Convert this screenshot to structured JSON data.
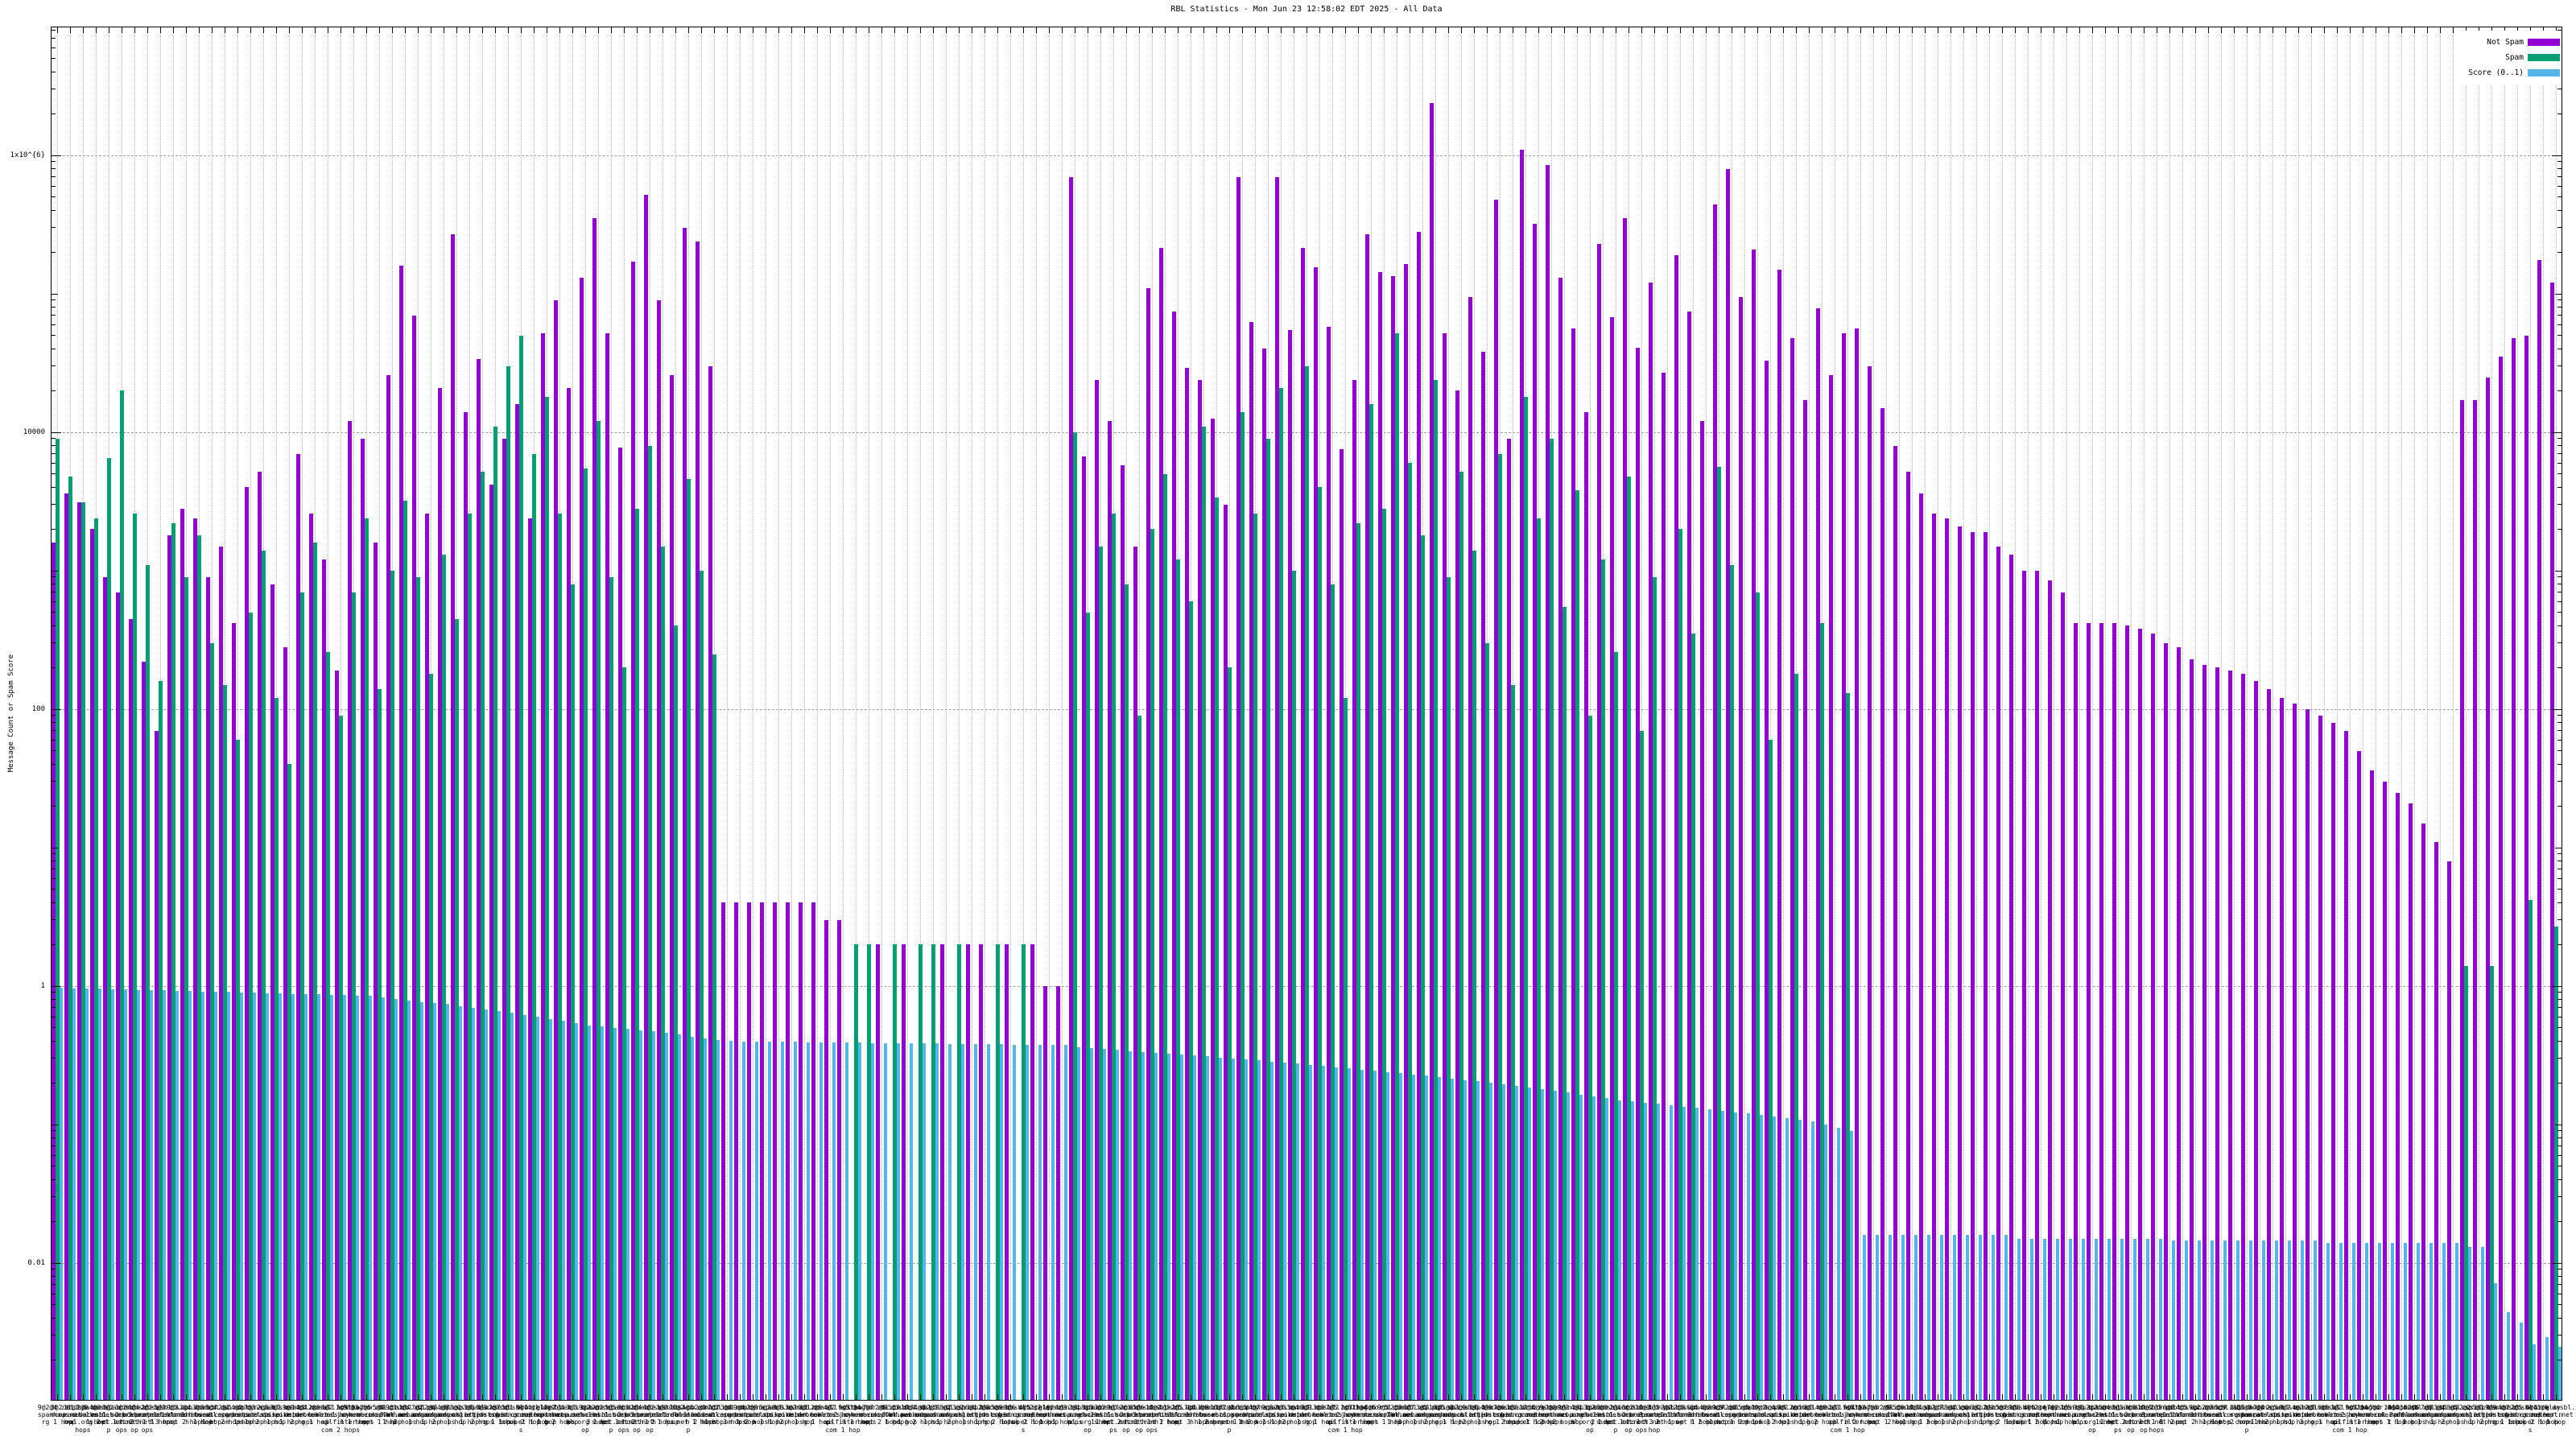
{
  "title": "RBL Statistics - Mon Jun 23 12:58:02 EDT 2025 - All Data",
  "y_axis": {
    "label": "Message Count or Spam Score",
    "tick_labels": [
      "1x10^{6}",
      "10000",
      "100",
      "1",
      "0.01"
    ]
  },
  "legend": [
    {
      "label": "Not Spam",
      "color": "#9400d3"
    },
    {
      "label": "Spam",
      "color": "#009e73"
    },
    {
      "label": "Score (0..1)",
      "color": "#56b4e9"
    }
  ],
  "chart_data": {
    "type": "bar",
    "title": "RBL Statistics - Mon Jun 23 12:58:02 EDT 2025 - All Data",
    "xlabel": "",
    "ylabel": "Message Count or Spam Score",
    "y_scale": "log10",
    "ylim": [
      0.001,
      8500000
    ],
    "grid": true,
    "legend_position": "top-right-inside",
    "y_gridlines": [
      1000000,
      10000,
      100,
      1,
      0.01
    ],
    "series": [
      {
        "name": "Not Spam",
        "color": "#9400d3",
        "values": [
          1600,
          3600,
          3100,
          2000,
          900,
          700,
          450,
          220,
          70,
          1800,
          2800,
          2400,
          900,
          1500,
          420,
          4000,
          5200,
          800,
          280,
          7000,
          2600,
          1200,
          190,
          12000,
          9000,
          1600,
          26000,
          160000,
          70000,
          2600,
          21000,
          270000,
          14000,
          34000,
          4200,
          9000,
          16000,
          2400,
          52000,
          90000,
          21000,
          130000,
          350000,
          52000,
          7800,
          170000,
          520000,
          90000,
          26000,
          300000,
          240000,
          30000,
          4,
          4,
          4,
          4,
          4,
          4,
          4,
          4,
          3,
          3,
          0,
          0,
          2,
          0,
          2,
          0,
          0,
          2,
          0,
          2,
          2,
          0,
          2,
          0,
          2,
          1,
          1,
          700000,
          6700,
          24000,
          12000,
          5800,
          1500,
          110000,
          215000,
          74000,
          29000,
          24000,
          12500,
          3000,
          700000,
          63000,
          40000,
          700000,
          55000,
          215000,
          155000,
          58000,
          7500,
          24000,
          270000,
          143000,
          135000,
          165000,
          280000,
          2400000,
          52000,
          20000,
          95000,
          38000,
          480000,
          9000,
          1100000,
          320000,
          850000,
          130000,
          56000,
          14000,
          230000,
          68000,
          350000,
          41000,
          120000,
          27000,
          190000,
          74000,
          12000,
          440000,
          800000,
          95000,
          210000,
          33000,
          150000,
          48000,
          17000,
          79000,
          26000,
          52000,
          56000,
          30000,
          15000,
          8000,
          5200,
          3600,
          2600,
          2400,
          2100,
          1900,
          1900,
          1500,
          1300,
          1000,
          1000,
          850,
          700,
          420,
          420,
          420,
          420,
          400,
          380,
          350,
          300,
          280,
          230,
          210,
          200,
          190,
          180,
          160,
          140,
          120,
          110,
          100,
          90,
          80,
          70,
          50,
          36,
          30,
          25,
          21,
          15,
          11,
          8,
          17000,
          17000,
          25000,
          35000,
          48000,
          50000,
          175000,
          120000
        ]
      },
      {
        "name": "Spam",
        "color": "#009e73",
        "values": [
          9000,
          4800,
          3100,
          2400,
          6500,
          20000,
          2600,
          1100,
          160,
          2200,
          900,
          1800,
          300,
          150,
          60,
          500,
          1400,
          120,
          40,
          700,
          1600,
          260,
          90,
          700,
          2400,
          140,
          1000,
          3200,
          900,
          180,
          1300,
          450,
          2600,
          5200,
          11000,
          30000,
          50000,
          7000,
          18000,
          2600,
          800,
          5500,
          12000,
          900,
          200,
          2800,
          8000,
          1500,
          400,
          4600,
          1000,
          250,
          0,
          0,
          0,
          0,
          0,
          0,
          0,
          0,
          0,
          0,
          2,
          2,
          0,
          2,
          0,
          2,
          2,
          0,
          2,
          0,
          0,
          2,
          0,
          2,
          0,
          0,
          0,
          10000,
          500,
          1500,
          2600,
          800,
          90,
          2000,
          5000,
          1200,
          600,
          11000,
          3400,
          200,
          14000,
          2600,
          9000,
          21000,
          1000,
          30000,
          4000,
          800,
          120,
          2200,
          16000,
          2800,
          52000,
          6000,
          1800,
          24000,
          900,
          5200,
          1400,
          300,
          7000,
          150,
          18000,
          2400,
          9000,
          550,
          3800,
          90,
          1200,
          260,
          4800,
          70,
          900,
          0,
          2000,
          350,
          0,
          5600,
          1100,
          0,
          700,
          60,
          0,
          180,
          0,
          420,
          0,
          130,
          0,
          0,
          0,
          0,
          0,
          0,
          0,
          0,
          0,
          0,
          0,
          0,
          0,
          0,
          0,
          0,
          0,
          0,
          0,
          0,
          0,
          0,
          0,
          0,
          0,
          0,
          0,
          0,
          0,
          0,
          0,
          0,
          0,
          0,
          0,
          0,
          0,
          0,
          0,
          0,
          0,
          0,
          0,
          0,
          0,
          0,
          0,
          1.4,
          0,
          1.4,
          0,
          0,
          4.2,
          0,
          2.7
        ]
      },
      {
        "name": "Score (0..1)",
        "color": "#56b4e9",
        "values": [
          0.97,
          0.965,
          0.96,
          0.955,
          0.95,
          0.945,
          0.94,
          0.935,
          0.93,
          0.925,
          0.92,
          0.915,
          0.91,
          0.905,
          0.9,
          0.895,
          0.89,
          0.885,
          0.88,
          0.875,
          0.87,
          0.865,
          0.86,
          0.855,
          0.85,
          0.83,
          0.81,
          0.79,
          0.77,
          0.76,
          0.74,
          0.72,
          0.7,
          0.68,
          0.66,
          0.64,
          0.62,
          0.6,
          0.58,
          0.56,
          0.54,
          0.52,
          0.51,
          0.5,
          0.49,
          0.48,
          0.47,
          0.46,
          0.45,
          0.43,
          0.42,
          0.41,
          0.4,
          0.399,
          0.398,
          0.397,
          0.396,
          0.395,
          0.394,
          0.393,
          0.392,
          0.391,
          0.39,
          0.389,
          0.388,
          0.387,
          0.386,
          0.385,
          0.384,
          0.383,
          0.382,
          0.381,
          0.38,
          0.379,
          0.378,
          0.377,
          0.376,
          0.375,
          0.374,
          0.36,
          0.355,
          0.35,
          0.345,
          0.34,
          0.335,
          0.33,
          0.325,
          0.32,
          0.315,
          0.31,
          0.305,
          0.3,
          0.295,
          0.29,
          0.285,
          0.28,
          0.275,
          0.27,
          0.265,
          0.26,
          0.255,
          0.25,
          0.245,
          0.24,
          0.235,
          0.23,
          0.225,
          0.22,
          0.215,
          0.21,
          0.205,
          0.2,
          0.195,
          0.19,
          0.185,
          0.18,
          0.175,
          0.17,
          0.165,
          0.16,
          0.155,
          0.15,
          0.147,
          0.144,
          0.141,
          0.138,
          0.135,
          0.132,
          0.129,
          0.126,
          0.123,
          0.12,
          0.117,
          0.114,
          0.111,
          0.108,
          0.105,
          0.1,
          0.095,
          0.09,
          0.016,
          0.016,
          0.016,
          0.016,
          0.016,
          0.016,
          0.016,
          0.016,
          0.016,
          0.016,
          0.016,
          0.016,
          0.015,
          0.015,
          0.015,
          0.015,
          0.015,
          0.015,
          0.015,
          0.015,
          0.015,
          0.015,
          0.015,
          0.015,
          0.0145,
          0.0145,
          0.0145,
          0.0145,
          0.0145,
          0.0145,
          0.0145,
          0.0145,
          0.0145,
          0.0145,
          0.0145,
          0.0145,
          0.014,
          0.014,
          0.014,
          0.014,
          0.014,
          0.014,
          0.014,
          0.014,
          0.014,
          0.014,
          0.014,
          0.013,
          0.013,
          0.0072,
          0.0044,
          0.0037,
          0.0026,
          0.0029,
          0.0025
        ]
      }
    ],
    "categories": [
      "9@2@4 zen.spamhaus.org 1 hop",
      "3@2 bl.spamcop.net 1 hop",
      "11@8 b.barracudacentral.org 2 hops",
      "2@9 dnsbl.sorbs.net 1 hop",
      "4@3 spam.dnsbl.sorbs.net 1 hop",
      "8@2 dnsbl-1.uceprotect.net 2 hops",
      "1@2 dnsbl-2.uceprotect.net 1 hop",
      "6@4 dnsbl-3.uceprotect.net 3 hops",
      "2@2 psbl.surriel.com 1 hop",
      "5@3 db.wpbl.info 1 hop",
      "9@3 ix.dnsbl.manitu.net 2 hops",
      "2@4 combined.abuse.ch 1 hop",
      "3@3 cbl.abuseat.org 1 hop",
      "8@4 dul.dnsbl.sorbs.net 2 hops",
      "2@1 noptr.spamrats.com 1 hop",
      "4@2 dyna.spamrats.com 1 hop",
      "7@3 spam.spamrats.com 2 hops",
      "2@8 bl.mailspike.net 1 hop",
      "3@1 z.mailspike.net 1 hop",
      "9@9 bl.nordspam.com 2 hops",
      "4@4 dnsbl.dronebl.org 1 hop",
      "2@3 all.s5h.net 1 hop",
      "6@2 hostkarma.junkemailfilter.com 2 hops",
      "3@9 bogons.cymru.com 1 hop",
      "8@3 tor.dan.me.uk 3 hops",
      "2@5 rbl.interserver.net 1 hop",
      "5@4 dnsbl.spfbl.net 1 hop",
      "9@1 dbl.spamhaus.org 2 hops",
      "3@4 xbl.spamhaus.org 1 hop",
      "7@2 pbl.spamhaus.org 1 hop",
      "2@6 sbl.spamhaus.org 2 hops",
      "4@9 css.spamhaus.org 1 hop",
      "8@1 bl.blocklist.de 1 hop",
      "3@6 backscatter.org 2 hops",
      "6@3 dnsbl.justspam.org 1 hop",
      "2@7 dnsbl.cobion.com 1 hop",
      "5@1 orbz.gst-group.co.uk 2 hops",
      "9@4 relays.nether.net 1 hop",
      "4@1 dnsbl.kempt.net 1 hop",
      "12@2 zen.spamhaus.org 2 hops",
      "7@4 bl.spamcop.net 1 hop",
      "3@3 b.barracudacentral.org 1 hop",
      "9@2 dnsbl.sorbs.net 3 hops",
      "2@2 spam.dnsbl.sorbs.net 1 hop",
      "5@5 dnsbl-1.uceprotect.net 2 hops",
      "8@3 dnsbl-2.uceprotect.net 1 hop",
      "2@4 dnsbl-3.uceprotect.net 1 hop",
      "6@2 psbl.surriel.com 2 hops",
      "3@8 db.wpbl.info 1 hop",
      "10@2 ix.dnsbl.manitu.net 1 hop",
      "4@4 combined.abuse.ch 2 hops",
      "2@3 cbl.abuseat.org 1 hop",
      "7@2 dul.dnsbl.sorbs.net 3 hops",
      "3@5 noptr.spamrats.com 1 hop",
      "9@4 dyna.spamrats.com 2 hops",
      "2@9 spam.spamrats.com 1 hop",
      "5@2 bl.mailspike.net 1 hop",
      "8@8 z.mailspike.net 2 hops",
      "3@2 bl.nordspam.com 1 hop",
      "6@6 dnsbl.dronebl.org 1 hop",
      "2@5 all.s5h.net 2 hops",
      "4@2 hostkarma.junkemailfilter.com 1 hop",
      "9@3 bogons.cymru.com 1 hop",
      "3@4 tor.dan.me.uk 3 hops",
      "7@7 rbl.interserver.net 2 hops",
      "2@6 dnsbl.spfbl.net 1 hop",
      "5@3 dbl.spamhaus.org 1 hop",
      "10@4 xbl.spamhaus.org 2 hops",
      "4@8 pbl.spamhaus.org 1 hop",
      "2@1 sbl.spamhaus.org 1 hop",
      "8@2 css.spamhaus.org 2 hops",
      "3@7 bl.blocklist.de 1 hop",
      "6@4 backscatter.org 1 hop",
      "2@8 dnsbl.justspam.org 2 hops",
      "5@9 dnsbl.cobion.com 1 hop",
      "9@6 orbz.gst-group.co.uk 2 hops",
      "4@5 relays.nether.net 1 hop",
      "2@2 dnsbl.kempt.net 1 hop",
      "1@2 zen.spamhaus.org 1 hop",
      "6@3 bl.spamcop.net 2 hops",
      "2@4 b.barracudacentral.org 1 hop",
      "8@5 dnsbl.sorbs.net 1 hop",
      "3@2 spam.dnsbl.sorbs.net 2 hops",
      "9@7 dnsbl-1.uceprotect.net 1 hop",
      "2@3 dnsbl-2.uceprotect.net 1 hop",
      "5@6 dnsbl-3.uceprotect.net 2 hops",
      "11@2 psbl.surriel.com 1 hop",
      "4@3 db.wpbl.info 1 hop",
      "2@5 ix.dnsbl.manitu.net 3 hops",
      "7@8 combined.abuse.ch 1 hop",
      "3@9 cbl.abuseat.org 2 hops",
      "10@3 dul.dnsbl.sorbs.net 1 hop",
      "2@2 noptr.spamrats.com 1 hop",
      "6@5 dyna.spamrats.com 2 hops",
      "4@7 spam.spamrats.com 1 hop",
      "9@8 bl.mailspike.net 1 hop",
      "2@6 z.mailspike.net 2 hops",
      "5@4 bl.nordspam.com 1 hop",
      "8@9 dnsbl.dronebl.org 1 hop",
      "3@3 all.s5h.net 2 hops",
      "7@5 hostkarma.junkemailfilter.com 1 hop",
      "2@7 bogons.cymru.com 1 hop",
      "11@4 tor.dan.me.uk 2 hops",
      "4@6 rbl.interserver.net 1 hop",
      "9@5 dnsbl.spfbl.net 1 hop",
      "2@8 dbl.spamhaus.org 3 hops",
      "6@7 xbl.spamhaus.org 1 hop",
      "3@5 pbl.spamhaus.org 2 hops",
      "10@6 sbl.spamhaus.org 1 hop",
      "5@8 css.spamhaus.org 1 hop",
      "2@9 bl.blocklist.de 2 hops",
      "8@6 backscatter.org 1 hop",
      "4@9 dnsbl.justspam.org 1 hop",
      "7@6 dnsbl.cobion.com 2 hops",
      "3@8 orbz.gst-group.co.uk 1 hop",
      "12@4 relays.nether.net 1 hop",
      "6@9 dnsbl.kempt.net 2 hops",
      "2@2 zen.spamhaus.org 2 hops",
      "9@2 bl.spamcop.net 1 hop",
      "4@4 b.barracudacentral.org 1 hop",
      "3@2 dnsbl.sorbs.net 2 hops",
      "8@8 spam.dnsbl.sorbs.net 1 hop",
      "2@4 dnsbl-1.uceprotect.net 1 hop",
      "5@2 dnsbl-2.uceprotect.net 3 hops",
      "11@3 dnsbl-3.uceprotect.net 1 hop",
      "3@3 psbl.surriel.com 2 hops",
      "7@2 db.wpbl.info 1 hop",
      "2@8 ix.dnsbl.manitu.net 1 hop",
      "6@6 combined.abuse.ch 2 hops",
      "4@2 cbl.abuseat.org 1 hop",
      "9@9 dul.dnsbl.sorbs.net 1 hop",
      "2@5 noptr.spamrats.com 2 hops",
      "5@5 dyna.spamrats.com 1 hop",
      "10@2 spam.spamrats.com 1 hop",
      "3@4 bl.mailspike.net 2 hops",
      "8@2 z.mailspike.net 1 hop",
      "2@6 bl.nordspam.com 1 hop",
      "6@3 dnsbl.dronebl.org 2 hops",
      "4@8 all.s5h.net 1 hop",
      "2@3 hostkarma.junkemailfilter.com 1 hop",
      "9@4 bogons.cymru.com 2 hops",
      "3@7 tor.dan.me.uk 1 hop",
      "7@3 rbl.interserver.net 1 hop",
      "2@9 dnsbl.spfbl.net 2 hops",
      "5@6 dbl.spamhaus.org 1 hop",
      "11@8 xbl.spamhaus.org 1 hop",
      "4@3 pbl.spamhaus.org 3 hops",
      "2@7 sbl.spamhaus.org 1 hop",
      "8@4 css.spamhaus.org 2 hops",
      "3@6 bl.blocklist.de 1 hop",
      "6@2 backscatter.org 1 hop",
      "2@2 dnsbl.justspam.org 2 hops",
      "5@7 dnsbl.cobion.com 1 hop",
      "9@8 orbz.gst-group.co.uk 1 hop",
      "4@6 relays.nether.net 2 hops",
      "2@4 dnsbl.kempt.net 1 hop",
      "7@2 zen.spamhaus.org 1 hop",
      "3@5 bl.spamcop.net 2 hops",
      "9@6 b.barracudacentral.org 1 hop",
      "2@2 dnsbl.sorbs.net 1 hop",
      "5@4 spam.dnsbl.sorbs.net 2 hops",
      "8@3 dnsbl-1.uceprotect.net 1 hop",
      "3@8 dnsbl-2.uceprotect.net 1 hop",
      "10@5 dnsbl-3.uceprotect.net 2 hops",
      "2@3 psbl.surriel.com 1 hop",
      "6@8 db.wpbl.info 1 hop",
      "4@5 ix.dnsbl.manitu.net 2 hops",
      "9@2 combined.abuse.ch 1 hop",
      "2@7 cbl.abuseat.org 1 hop",
      "5@9 dul.dnsbl.sorbs.net 2 hops",
      "11@6 noptr.spamrats.com 1 hop",
      "3@3 dyna.spamrats.com 1 hop",
      "7@4 spam.spamrats.com 2 hops",
      "2@5 bl.mailspike.net 1 hop",
      "8@7 z.mailspike.net 1 hop",
      "4@2 bl.nordspam.com 3 hops",
      "2@8 dnsbl.dronebl.org 1 hop",
      "6@5 all.s5h.net 2 hops",
      "3@2 hostkarma.junkemailfilter.com 1 hop",
      "9@7 bogons.cymru.com 1 hop",
      "2@4 tor.dan.me.uk 2 hops",
      "5@2 rbl.interserver.net 1 hop",
      "10@8 dnsbl.spfbl.net 1 hop",
      "4@4 dbl.spamhaus.org 2 hops",
      "2@6 xbl.spamhaus.org 1 hop",
      "7@9 pbl.spamhaus.org 1 hop",
      "3@4 sbl.spamhaus.org 2 hops",
      "8@5 css.spamhaus.org 1 hop",
      "2@2 bl.blocklist.de 1 hop",
      "5@3 backscatter.org 2 hops",
      "9@9 dnsbl.justspam.org 1 hop",
      "4@7 dnsbl.cobion.com 1 hop",
      "2@5 orbz.gst-group.co.uk 2 hops",
      "6@4 relays.nether.net 1 hop",
      "3@6 dnsbl.kempt.net 1 hop"
    ]
  }
}
